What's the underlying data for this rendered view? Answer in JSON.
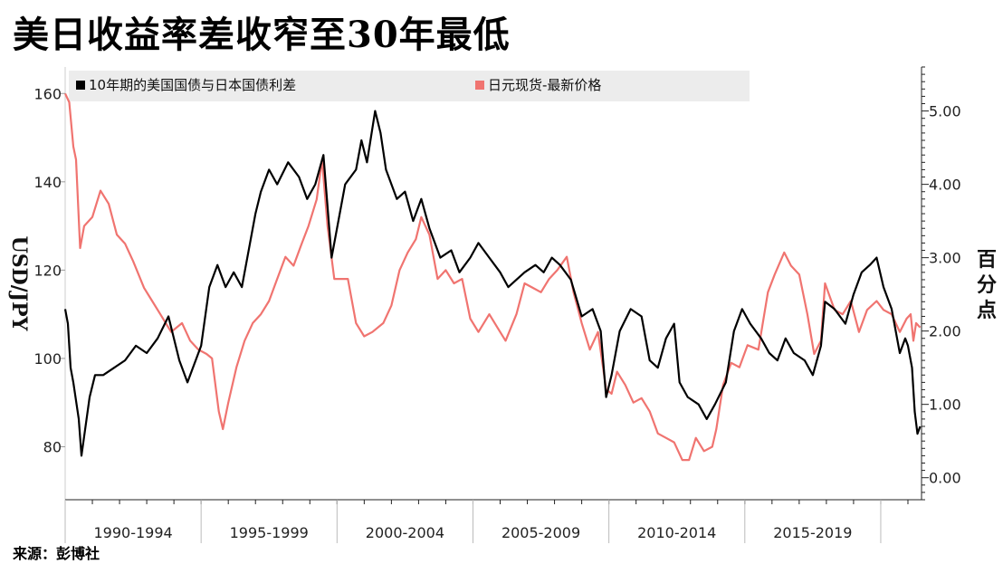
{
  "title": "美日收益率差收窄至30年最低",
  "source": "来源：彭博社",
  "chart_data": {
    "type": "line",
    "title": "美日收益率差收窄至30年最低",
    "legend_placement": "top-left",
    "left_axis": {
      "label": "USD/JPY",
      "range": [
        68,
        166
      ],
      "ticks": [
        80,
        100,
        120,
        140,
        160
      ]
    },
    "right_axis": {
      "label": "百分点",
      "range": [
        -0.3,
        5.6
      ],
      "ticks": [
        "0.00",
        "1.00",
        "2.00",
        "3.00",
        "4.00",
        "5.00"
      ]
    },
    "x_axis": {
      "range": [
        1989.0,
        2020.5
      ],
      "period_labels": [
        "1990-1994",
        "1995-1999",
        "2000-2004",
        "2005-2009",
        "2010-2014",
        "2015-2019"
      ],
      "dividers": [
        1989.0,
        1994.0,
        1999.0,
        2004.0,
        2009.0,
        2014.0,
        2019.0
      ]
    },
    "grid": false,
    "series": [
      {
        "name": "10年期的美国国债与日本国债利差",
        "color": "#000000",
        "axis": "right",
        "points": [
          [
            1989.0,
            2.3
          ],
          [
            1989.1,
            2.1
          ],
          [
            1989.2,
            1.5
          ],
          [
            1989.3,
            1.3
          ],
          [
            1989.5,
            0.8
          ],
          [
            1989.6,
            0.3
          ],
          [
            1989.75,
            0.7
          ],
          [
            1989.9,
            1.1
          ],
          [
            1990.1,
            1.4
          ],
          [
            1990.4,
            1.4
          ],
          [
            1990.8,
            1.5
          ],
          [
            1991.2,
            1.6
          ],
          [
            1991.6,
            1.8
          ],
          [
            1992.0,
            1.7
          ],
          [
            1992.4,
            1.9
          ],
          [
            1992.8,
            2.2
          ],
          [
            1993.2,
            1.6
          ],
          [
            1993.5,
            1.3
          ],
          [
            1993.7,
            1.5
          ],
          [
            1994.0,
            1.8
          ],
          [
            1994.3,
            2.6
          ],
          [
            1994.6,
            2.9
          ],
          [
            1994.9,
            2.6
          ],
          [
            1995.2,
            2.8
          ],
          [
            1995.5,
            2.6
          ],
          [
            1995.8,
            3.2
          ],
          [
            1996.0,
            3.6
          ],
          [
            1996.2,
            3.9
          ],
          [
            1996.5,
            4.2
          ],
          [
            1996.8,
            4.0
          ],
          [
            1997.2,
            4.3
          ],
          [
            1997.6,
            4.1
          ],
          [
            1997.9,
            3.8
          ],
          [
            1998.2,
            4.0
          ],
          [
            1998.5,
            4.4
          ],
          [
            1998.8,
            3.0
          ],
          [
            1999.0,
            3.4
          ],
          [
            1999.3,
            4.0
          ],
          [
            1999.7,
            4.2
          ],
          [
            1999.9,
            4.6
          ],
          [
            2000.1,
            4.3
          ],
          [
            2000.4,
            5.0
          ],
          [
            2000.6,
            4.7
          ],
          [
            2000.8,
            4.2
          ],
          [
            2001.2,
            3.8
          ],
          [
            2001.5,
            3.9
          ],
          [
            2001.8,
            3.5
          ],
          [
            2002.1,
            3.8
          ],
          [
            2002.4,
            3.4
          ],
          [
            2002.8,
            3.0
          ],
          [
            2003.2,
            3.1
          ],
          [
            2003.5,
            2.8
          ],
          [
            2003.9,
            3.0
          ],
          [
            2004.2,
            3.2
          ],
          [
            2004.6,
            3.0
          ],
          [
            2005.0,
            2.8
          ],
          [
            2005.3,
            2.6
          ],
          [
            2005.6,
            2.7
          ],
          [
            2005.9,
            2.8
          ],
          [
            2006.3,
            2.9
          ],
          [
            2006.6,
            2.8
          ],
          [
            2006.9,
            3.0
          ],
          [
            2007.2,
            2.9
          ],
          [
            2007.6,
            2.7
          ],
          [
            2008.0,
            2.2
          ],
          [
            2008.4,
            2.3
          ],
          [
            2008.7,
            2.0
          ],
          [
            2008.9,
            1.1
          ],
          [
            2009.1,
            1.4
          ],
          [
            2009.4,
            2.0
          ],
          [
            2009.8,
            2.3
          ],
          [
            2010.2,
            2.2
          ],
          [
            2010.5,
            1.6
          ],
          [
            2010.8,
            1.5
          ],
          [
            2011.1,
            1.9
          ],
          [
            2011.4,
            2.1
          ],
          [
            2011.6,
            1.3
          ],
          [
            2011.9,
            1.1
          ],
          [
            2012.3,
            1.0
          ],
          [
            2012.6,
            0.8
          ],
          [
            2012.9,
            1.0
          ],
          [
            2013.3,
            1.3
          ],
          [
            2013.6,
            2.0
          ],
          [
            2013.9,
            2.3
          ],
          [
            2014.2,
            2.1
          ],
          [
            2014.6,
            1.9
          ],
          [
            2014.9,
            1.7
          ],
          [
            2015.2,
            1.6
          ],
          [
            2015.5,
            1.9
          ],
          [
            2015.8,
            1.7
          ],
          [
            2016.2,
            1.6
          ],
          [
            2016.5,
            1.4
          ],
          [
            2016.8,
            1.8
          ],
          [
            2016.95,
            2.4
          ],
          [
            2017.3,
            2.3
          ],
          [
            2017.7,
            2.1
          ],
          [
            2018.0,
            2.5
          ],
          [
            2018.3,
            2.8
          ],
          [
            2018.6,
            2.9
          ],
          [
            2018.85,
            3.0
          ],
          [
            2019.1,
            2.6
          ],
          [
            2019.4,
            2.3
          ],
          [
            2019.7,
            1.7
          ],
          [
            2019.9,
            1.9
          ],
          [
            2020.0,
            1.8
          ],
          [
            2020.15,
            1.5
          ],
          [
            2020.25,
            0.9
          ],
          [
            2020.35,
            0.6
          ],
          [
            2020.45,
            0.7
          ]
        ]
      },
      {
        "name": "日元现货-最新价格",
        "color": "#f07470",
        "axis": "left",
        "points": [
          [
            1989.0,
            160
          ],
          [
            1989.15,
            158
          ],
          [
            1989.3,
            148
          ],
          [
            1989.4,
            145
          ],
          [
            1989.55,
            125
          ],
          [
            1989.7,
            130
          ],
          [
            1990.0,
            132
          ],
          [
            1990.3,
            138
          ],
          [
            1990.6,
            135
          ],
          [
            1990.9,
            128
          ],
          [
            1991.2,
            126
          ],
          [
            1991.5,
            122
          ],
          [
            1991.9,
            116
          ],
          [
            1992.2,
            113
          ],
          [
            1992.5,
            110
          ],
          [
            1992.9,
            106
          ],
          [
            1993.3,
            108
          ],
          [
            1993.6,
            104
          ],
          [
            1993.9,
            102
          ],
          [
            1994.2,
            101
          ],
          [
            1994.4,
            100
          ],
          [
            1994.65,
            88
          ],
          [
            1994.8,
            84
          ],
          [
            1995.0,
            90
          ],
          [
            1995.3,
            98
          ],
          [
            1995.6,
            104
          ],
          [
            1995.9,
            108
          ],
          [
            1996.2,
            110
          ],
          [
            1996.5,
            113
          ],
          [
            1996.8,
            118
          ],
          [
            1997.1,
            123
          ],
          [
            1997.4,
            121
          ],
          [
            1997.7,
            126
          ],
          [
            1997.95,
            130
          ],
          [
            1998.25,
            136
          ],
          [
            1998.45,
            145
          ],
          [
            1998.65,
            130
          ],
          [
            1998.9,
            118
          ],
          [
            1999.1,
            118
          ],
          [
            1999.4,
            118
          ],
          [
            1999.7,
            108
          ],
          [
            2000.0,
            105
          ],
          [
            2000.3,
            106
          ],
          [
            2000.7,
            108
          ],
          [
            2001.0,
            112
          ],
          [
            2001.3,
            120
          ],
          [
            2001.6,
            124
          ],
          [
            2001.9,
            127
          ],
          [
            2002.1,
            132
          ],
          [
            2002.4,
            128
          ],
          [
            2002.7,
            118
          ],
          [
            2003.0,
            120
          ],
          [
            2003.3,
            117
          ],
          [
            2003.6,
            118
          ],
          [
            2003.9,
            109
          ],
          [
            2004.2,
            106
          ],
          [
            2004.6,
            110
          ],
          [
            2004.9,
            107
          ],
          [
            2005.2,
            104
          ],
          [
            2005.6,
            110
          ],
          [
            2005.9,
            117
          ],
          [
            2006.2,
            116
          ],
          [
            2006.5,
            115
          ],
          [
            2006.8,
            118
          ],
          [
            2007.1,
            120
          ],
          [
            2007.45,
            123
          ],
          [
            2007.7,
            115
          ],
          [
            2008.0,
            108
          ],
          [
            2008.3,
            102
          ],
          [
            2008.6,
            106
          ],
          [
            2008.9,
            93
          ],
          [
            2009.1,
            92
          ],
          [
            2009.3,
            97
          ],
          [
            2009.6,
            94
          ],
          [
            2009.9,
            90
          ],
          [
            2010.2,
            91
          ],
          [
            2010.5,
            88
          ],
          [
            2010.8,
            83
          ],
          [
            2011.1,
            82
          ],
          [
            2011.4,
            81
          ],
          [
            2011.7,
            77
          ],
          [
            2011.95,
            77
          ],
          [
            2012.2,
            82
          ],
          [
            2012.5,
            79
          ],
          [
            2012.8,
            80
          ],
          [
            2012.95,
            84
          ],
          [
            2013.2,
            94
          ],
          [
            2013.5,
            99
          ],
          [
            2013.8,
            98
          ],
          [
            2014.1,
            103
          ],
          [
            2014.5,
            102
          ],
          [
            2014.85,
            115
          ],
          [
            2015.1,
            119
          ],
          [
            2015.45,
            124
          ],
          [
            2015.7,
            121
          ],
          [
            2016.0,
            119
          ],
          [
            2016.3,
            110
          ],
          [
            2016.55,
            101
          ],
          [
            2016.8,
            104
          ],
          [
            2016.95,
            117
          ],
          [
            2017.3,
            111
          ],
          [
            2017.6,
            110
          ],
          [
            2017.9,
            113
          ],
          [
            2018.2,
            106
          ],
          [
            2018.5,
            111
          ],
          [
            2018.85,
            113
          ],
          [
            2019.1,
            111
          ],
          [
            2019.4,
            110
          ],
          [
            2019.7,
            106
          ],
          [
            2019.95,
            109
          ],
          [
            2020.1,
            110
          ],
          [
            2020.2,
            104
          ],
          [
            2020.3,
            108
          ],
          [
            2020.45,
            107
          ]
        ]
      }
    ]
  }
}
